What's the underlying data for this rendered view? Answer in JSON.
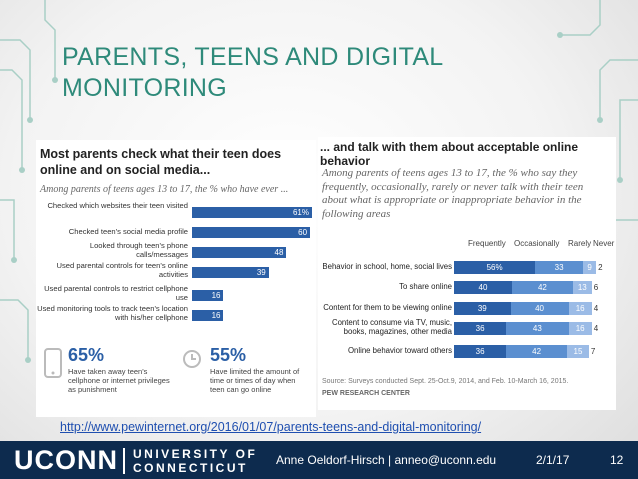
{
  "slide": {
    "title": "PARENTS, TEENS AND DIGITAL MONITORING",
    "link": "http://www.pewinternet.org/2016/01/07/parents-teens-and-digital-monitoring/",
    "footer": {
      "logo_main": "UCONN",
      "logo_line1": "UNIVERSITY OF",
      "logo_line2": "CONNECTICUT",
      "author": "Anne Oeldorf-Hirsch | anneo@uconn.edu",
      "date": "2/1/17",
      "slide_number": "12"
    },
    "accent_color": "#2e8a7a",
    "footer_color": "#0d2b4e"
  },
  "left_panel": {
    "heading": "Most parents check what their teen does online and on social media...",
    "subheading": "Among parents of teens ages 13 to 17, the % who have ever ...",
    "stat1_value": "65%",
    "stat1_text": "Have taken away teen's cellphone or internet privileges as punishment",
    "stat1_icon": "phone-icon",
    "stat2_value": "55%",
    "stat2_text": "Have limited the amount of time or times of day when teen can go online",
    "stat2_icon": "clock-icon"
  },
  "right_panel": {
    "heading": "... and talk with them about acceptable online behavior",
    "subheading": "Among parents of teens ages 13 to 17, the % who say they frequently, occasionally, rarely or never talk with their teen about what is appropriate or inappropriate behavior in the following areas",
    "source": "Source: Surveys conducted Sept. 25-Oct.9, 2014, and Feb. 10-March 16, 2015.",
    "org": "PEW RESEARCH CENTER"
  },
  "chart_data": [
    {
      "type": "bar",
      "orientation": "horizontal",
      "categories": [
        "Checked which websites their teen visited",
        "Checked teen's social media profile",
        "Looked through teen's phone calls/messages",
        "Used parental controls for teen's online activities",
        "Used parental controls to restrict cellphone use",
        "Used monitoring tools to track teen's location with his/her cellphone"
      ],
      "values": [
        61,
        60,
        48,
        39,
        16,
        16
      ],
      "labels": [
        "61%",
        "60",
        "48",
        "39",
        "16",
        "16"
      ],
      "xlim": [
        0,
        100
      ],
      "color": "#2b5fa6"
    },
    {
      "type": "bar",
      "orientation": "horizontal",
      "stacked": true,
      "categories": [
        "Behavior in school, home, social lives",
        "To share online",
        "Content for them to be viewing online",
        "Content to consume via TV, music, books, magazines, other media",
        "Online behavior toward others"
      ],
      "series": [
        {
          "name": "Frequently",
          "values": [
            56,
            40,
            39,
            36,
            36
          ],
          "color": "#2b5fa6"
        },
        {
          "name": "Occasionally",
          "values": [
            33,
            42,
            40,
            43,
            42
          ],
          "color": "#5b8fd0"
        },
        {
          "name": "Rarely",
          "values": [
            9,
            13,
            16,
            16,
            15
          ],
          "color": "#9bbbe6"
        },
        {
          "name": "Never",
          "values": [
            2,
            6,
            4,
            4,
            7
          ],
          "color": "#ffffff"
        }
      ],
      "value_labels": [
        [
          "56%",
          "33",
          "9",
          "2"
        ],
        [
          "40",
          "42",
          "13",
          "6"
        ],
        [
          "39",
          "40",
          "16",
          "4"
        ],
        [
          "36",
          "43",
          "16",
          "4"
        ],
        [
          "36",
          "42",
          "15",
          "7"
        ]
      ]
    }
  ]
}
